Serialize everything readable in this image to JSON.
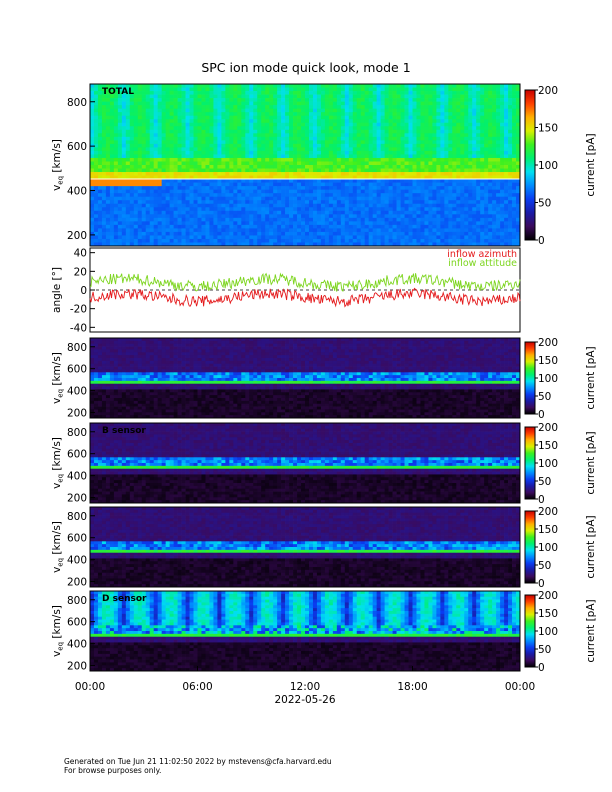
{
  "title": "SPC ion mode quick look, mode 1",
  "date_label": "2022-05-26",
  "time_ticks": [
    "00:00",
    "06:00",
    "12:00",
    "18:00",
    "00:00"
  ],
  "footer": {
    "line1": "Generated on Tue Jun 21 11:02:50 2022 by mstevens@cfa.harvard.edu",
    "line2": "For browse purposes only."
  },
  "colors": {
    "inflow_azimuth": "#e41a1c",
    "inflow_altitude": "#7dd51f",
    "colormap": [
      "#000000",
      "#3b0a5c",
      "#1a1aa6",
      "#0a3cf0",
      "#008cff",
      "#00e0f0",
      "#00f070",
      "#3cf020",
      "#d8f000",
      "#ffb000",
      "#ff4000",
      "#c80000"
    ]
  },
  "chart_data": [
    {
      "id": "total",
      "type": "heatmap",
      "label": "TOTAL",
      "ylabel": "v",
      "ylabel_sub": "eq",
      "ylabel_unit": " [km/s]",
      "yticks": [
        "200",
        "400",
        "600",
        "800"
      ],
      "ylim": [
        150,
        880
      ],
      "colorbar": {
        "label": "current [pA]",
        "ticks": [
          "0",
          "50",
          "100",
          "150",
          "200"
        ],
        "range": [
          0,
          200
        ]
      },
      "bulk_speed": 470,
      "x": [
        "00:00",
        "06:00",
        "12:00",
        "18:00",
        "00:00"
      ]
    },
    {
      "id": "angle",
      "type": "line",
      "ylabel": "angle [°]",
      "yticks": [
        "-40",
        "-20",
        "0",
        "20",
        "40"
      ],
      "ylim": [
        -45,
        45
      ],
      "series": [
        {
          "name": "inflow azimuth",
          "mean": -8,
          "spread": 6
        },
        {
          "name": "inflow attitude",
          "mean": 8,
          "spread": 6
        }
      ]
    },
    {
      "id": "sensor_a",
      "type": "heatmap",
      "label": "",
      "ylabel": "v",
      "ylabel_sub": "eq",
      "ylabel_unit": " [km/s]",
      "yticks": [
        "200",
        "400",
        "600",
        "800"
      ],
      "ylim": [
        150,
        880
      ],
      "colorbar": {
        "label": "current [pA]",
        "ticks": [
          "0",
          "50",
          "100",
          "150",
          "200"
        ],
        "range": [
          0,
          200
        ]
      },
      "bulk_speed": 470
    },
    {
      "id": "sensor_b",
      "type": "heatmap",
      "label": "B sensor",
      "ylabel": "v",
      "ylabel_sub": "eq",
      "ylabel_unit": " [km/s]",
      "yticks": [
        "200",
        "400",
        "600",
        "800"
      ],
      "ylim": [
        150,
        880
      ],
      "colorbar": {
        "label": "current [pA]",
        "ticks": [
          "0",
          "50",
          "100",
          "150",
          "200"
        ],
        "range": [
          0,
          200
        ]
      },
      "bulk_speed": 470
    },
    {
      "id": "sensor_c",
      "type": "heatmap",
      "label": "",
      "ylabel": "v",
      "ylabel_sub": "eq",
      "ylabel_unit": " [km/s]",
      "yticks": [
        "200",
        "400",
        "600",
        "800"
      ],
      "ylim": [
        150,
        880
      ],
      "colorbar": {
        "label": "current [pA]",
        "ticks": [
          "0",
          "50",
          "100",
          "150",
          "200"
        ],
        "range": [
          0,
          200
        ]
      },
      "bulk_speed": 470
    },
    {
      "id": "sensor_d",
      "type": "heatmap",
      "label": "D sensor",
      "ylabel": "v",
      "ylabel_sub": "eq",
      "ylabel_unit": " [km/s]",
      "yticks": [
        "200",
        "400",
        "600",
        "800"
      ],
      "ylim": [
        150,
        880
      ],
      "colorbar": {
        "label": "current [pA]",
        "ticks": [
          "0",
          "50",
          "100",
          "150",
          "200"
        ],
        "range": [
          0,
          200
        ]
      },
      "bulk_speed": 470
    }
  ]
}
